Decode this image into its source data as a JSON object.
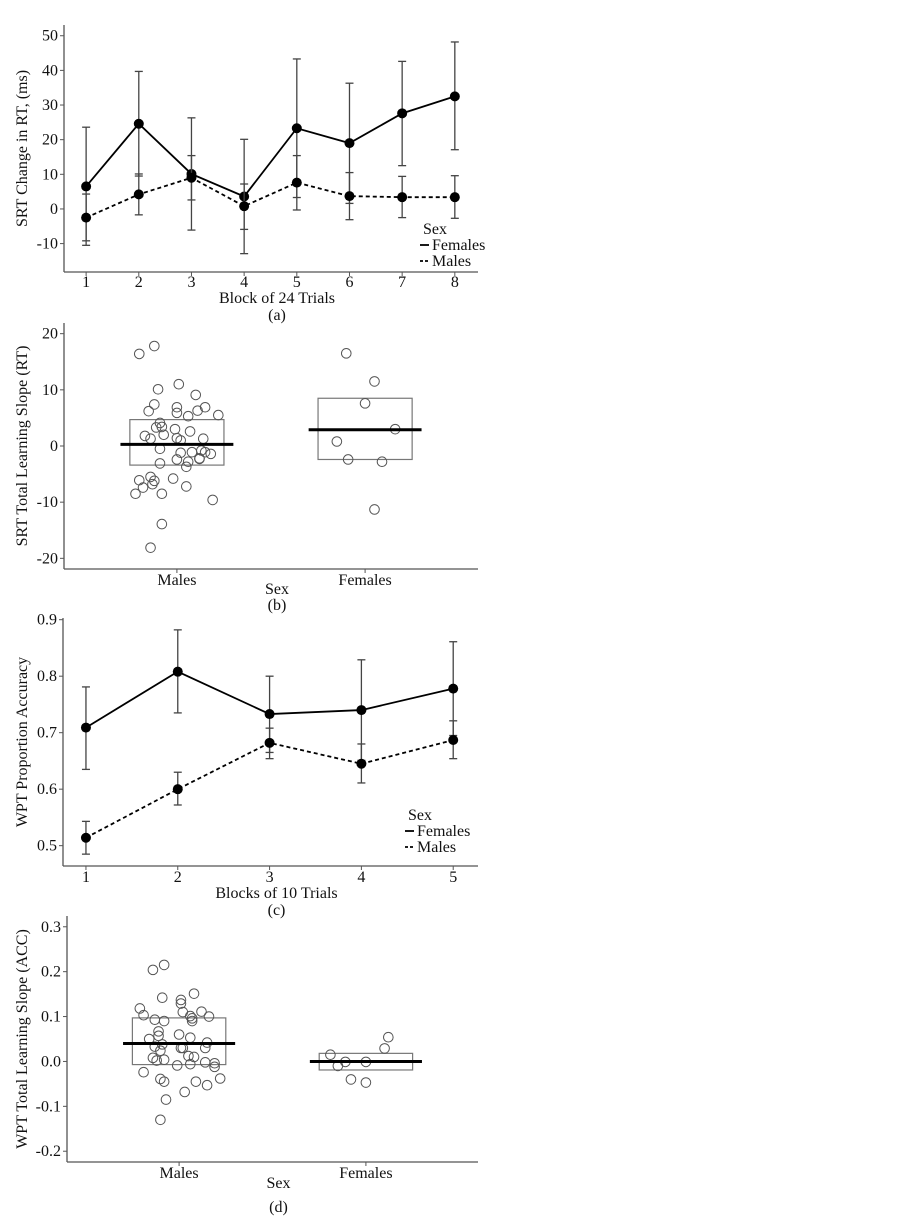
{
  "chart_data": [
    {
      "id": "a",
      "type": "line",
      "panel_label": "(a)",
      "xlabel": "Block of 24 Trials",
      "ylabel": "SRT Change in RT, (ms)",
      "x": [
        1,
        2,
        3,
        4,
        5,
        6,
        7,
        8
      ],
      "xticks": [
        "1",
        "2",
        "3",
        "4",
        "5",
        "6",
        "7",
        "8"
      ],
      "yticks": [
        -10,
        0,
        10,
        20,
        30,
        40,
        50
      ],
      "ytick_labels": [
        "-10",
        "0",
        "10",
        "20",
        "30",
        "40",
        "50"
      ],
      "ylim": [
        -18.2,
        53.1
      ],
      "legend": {
        "title": "Sex",
        "position": "bottom-right",
        "entries": [
          "Females",
          "Males"
        ]
      },
      "series": [
        {
          "name": "Females",
          "style": "solid",
          "values": [
            6.5,
            24.6,
            10.1,
            3.6,
            23.3,
            19.0,
            27.6,
            32.5
          ],
          "err_low": [
            -10.5,
            9.5,
            -6.1,
            -12.9,
            3.3,
            1.6,
            12.5,
            17.1
          ],
          "err_high": [
            23.6,
            39.7,
            26.3,
            20.1,
            43.3,
            36.3,
            42.6,
            48.2
          ]
        },
        {
          "name": "Males",
          "style": "dashed",
          "values": [
            -2.5,
            4.2,
            9.0,
            0.8,
            7.6,
            3.7,
            3.4,
            3.4
          ],
          "err_low": [
            -9.2,
            -1.7,
            2.6,
            -5.9,
            -0.3,
            -3.1,
            -2.5,
            -2.7
          ],
          "err_high": [
            4.3,
            10.1,
            15.4,
            7.2,
            15.4,
            10.5,
            9.4,
            9.6
          ]
        }
      ]
    },
    {
      "id": "b",
      "type": "scatter",
      "panel_label": "(b)",
      "xlabel": "Sex",
      "ylabel": "SRT Total Learning Slope (RT)",
      "categories": [
        "Males",
        "Females"
      ],
      "yticks": [
        -20,
        -10,
        0,
        10,
        20
      ],
      "ytick_labels": [
        "-20",
        "-10",
        "0",
        "10",
        "20"
      ],
      "ylim": [
        -21.9,
        21.9
      ],
      "groups": [
        {
          "name": "Males",
          "mean": 0.3,
          "box_low": -3.4,
          "box_high": 4.7,
          "points": [
            [
              16.4,
              -0.2
            ],
            [
              17.8,
              -0.12
            ],
            [
              10.1,
              -0.1
            ],
            [
              11.0,
              0.01
            ],
            [
              9.1,
              0.1
            ],
            [
              7.4,
              -0.12
            ],
            [
              6.2,
              -0.15
            ],
            [
              6.9,
              0
            ],
            [
              5.9,
              0
            ],
            [
              5.3,
              0.06
            ],
            [
              6.3,
              0.11
            ],
            [
              6.9,
              0.15
            ],
            [
              5.5,
              0.22
            ],
            [
              4.1,
              -0.09
            ],
            [
              3.3,
              -0.11
            ],
            [
              3.4,
              -0.08
            ],
            [
              3.0,
              -0.01
            ],
            [
              2.6,
              0.07
            ],
            [
              1.8,
              -0.17
            ],
            [
              1.3,
              -0.14
            ],
            [
              2.0,
              -0.07
            ],
            [
              1.4,
              0
            ],
            [
              1.0,
              0.02
            ],
            [
              1.3,
              0.14
            ],
            [
              -0.5,
              -0.09
            ],
            [
              -1.2,
              0.02
            ],
            [
              -1.1,
              0.08
            ],
            [
              -0.8,
              0.13
            ],
            [
              -1.1,
              0.15
            ],
            [
              -1.4,
              0.18
            ],
            [
              -2.4,
              0
            ],
            [
              -2.8,
              0.06
            ],
            [
              -2.2,
              0.12
            ],
            [
              -2.3,
              0.12
            ],
            [
              -3.1,
              -0.09
            ],
            [
              -3.7,
              0.05
            ],
            [
              -5.5,
              -0.14
            ],
            [
              -6.1,
              -0.2
            ],
            [
              -6.2,
              -0.12
            ],
            [
              -6.8,
              -0.13
            ],
            [
              -7.4,
              -0.18
            ],
            [
              -5.8,
              -0.02
            ],
            [
              -7.2,
              0.05
            ],
            [
              -8.5,
              -0.22
            ],
            [
              -8.5,
              -0.08
            ],
            [
              -9.6,
              0.19
            ],
            [
              -13.9,
              -0.08
            ],
            [
              -18.1,
              -0.14
            ]
          ]
        },
        {
          "name": "Females",
          "mean": 2.9,
          "box_low": -2.4,
          "box_high": 8.5,
          "points": [
            [
              16.5,
              -0.1
            ],
            [
              11.5,
              0.05
            ],
            [
              7.6,
              0
            ],
            [
              3.0,
              0.16
            ],
            [
              0.8,
              -0.15
            ],
            [
              -2.4,
              -0.09
            ],
            [
              -2.8,
              0.09
            ],
            [
              -11.3,
              0.05
            ]
          ]
        }
      ]
    },
    {
      "id": "c",
      "type": "line",
      "panel_label": "(c)",
      "xlabel": "Blocks of 10 Trials",
      "ylabel": "WPT Proportion Accuracy",
      "x": [
        1,
        2,
        3,
        4,
        5
      ],
      "xticks": [
        "1",
        "2",
        "3",
        "4",
        "5"
      ],
      "yticks": [
        0.5,
        0.6,
        0.7,
        0.8,
        0.9
      ],
      "ytick_labels": [
        "0.5",
        "0.6",
        "0.7",
        "0.8",
        "0.9"
      ],
      "ylim": [
        0.464,
        0.903
      ],
      "legend": {
        "title": "Sex",
        "position": "bottom-right",
        "entries": [
          "Females",
          "Males"
        ]
      },
      "series": [
        {
          "name": "Females",
          "style": "solid",
          "values": [
            0.709,
            0.808,
            0.733,
            0.74,
            0.778
          ],
          "err_low": [
            0.635,
            0.735,
            0.665,
            0.651,
            0.695
          ],
          "err_high": [
            0.781,
            0.882,
            0.8,
            0.829,
            0.861
          ]
        },
        {
          "name": "Males",
          "style": "dashed",
          "values": [
            0.514,
            0.6,
            0.682,
            0.645,
            0.687
          ],
          "err_low": [
            0.485,
            0.572,
            0.654,
            0.611,
            0.654
          ],
          "err_high": [
            0.543,
            0.63,
            0.708,
            0.68,
            0.721
          ]
        }
      ]
    },
    {
      "id": "d",
      "type": "scatter",
      "panel_label": "(d)",
      "xlabel": "Sex",
      "ylabel": "WPT Total Learning Slope (ACC)",
      "categories": [
        "Males",
        "Females"
      ],
      "yticks": [
        -0.2,
        -0.1,
        0.0,
        0.1,
        0.2,
        0.3
      ],
      "ytick_labels": [
        "-0.2",
        "-0.1",
        "0.0",
        "0.1",
        "0.2",
        "0.3"
      ],
      "ylim": [
        -0.224,
        0.324
      ],
      "groups": [
        {
          "name": "Males",
          "mean": 0.04,
          "box_low": -0.007,
          "box_high": 0.097,
          "points": [
            [
              0.204,
              -0.14
            ],
            [
              0.215,
              -0.08
            ],
            [
              0.151,
              0.08
            ],
            [
              0.142,
              -0.09
            ],
            [
              0.137,
              0.01
            ],
            [
              0.129,
              0.01
            ],
            [
              0.118,
              -0.21
            ],
            [
              0.111,
              0.12
            ],
            [
              0.11,
              0.02
            ],
            [
              0.103,
              -0.19
            ],
            [
              0.101,
              0.06
            ],
            [
              0.1,
              0.16
            ],
            [
              0.096,
              0.07
            ],
            [
              0.09,
              0.07
            ],
            [
              0.093,
              -0.13
            ],
            [
              0.09,
              -0.08
            ],
            [
              0.067,
              -0.11
            ],
            [
              0.057,
              -0.11
            ],
            [
              0.06,
              0
            ],
            [
              0.05,
              -0.16
            ],
            [
              0.053,
              0.06
            ],
            [
              0.042,
              0.15
            ],
            [
              0.038,
              -0.09
            ],
            [
              0.033,
              -0.13
            ],
            [
              0.03,
              0.01
            ],
            [
              0.03,
              0.02
            ],
            [
              0.03,
              0.14
            ],
            [
              0.024,
              -0.1
            ],
            [
              0.012,
              0.05
            ],
            [
              0.01,
              0.08
            ],
            [
              0.008,
              -0.14
            ],
            [
              0.002,
              -0.12
            ],
            [
              0.004,
              -0.08
            ],
            [
              -0.006,
              0.06
            ],
            [
              -0.002,
              0.14
            ],
            [
              -0.004,
              0.19
            ],
            [
              -0.012,
              0.19
            ],
            [
              -0.009,
              -0.01
            ],
            [
              -0.024,
              -0.19
            ],
            [
              -0.039,
              -0.1
            ],
            [
              -0.045,
              -0.08
            ],
            [
              -0.045,
              0.09
            ],
            [
              -0.053,
              0.15
            ],
            [
              -0.038,
              0.22
            ],
            [
              -0.068,
              0.03
            ],
            [
              -0.085,
              -0.07
            ],
            [
              -0.13,
              -0.1
            ]
          ]
        },
        {
          "name": "Females",
          "mean": 0.0,
          "box_low": -0.019,
          "box_high": 0.018,
          "points": [
            [
              0.054,
              0.12
            ],
            [
              0.029,
              0.1
            ],
            [
              0.015,
              -0.19
            ],
            [
              -0.001,
              -0.11
            ],
            [
              -0.01,
              -0.15
            ],
            [
              -0.001,
              0
            ],
            [
              -0.04,
              -0.08
            ],
            [
              -0.047,
              0
            ]
          ]
        }
      ]
    }
  ]
}
